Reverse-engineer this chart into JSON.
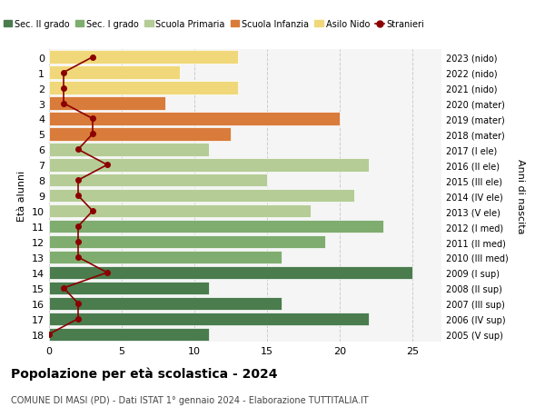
{
  "ages": [
    18,
    17,
    16,
    15,
    14,
    13,
    12,
    11,
    10,
    9,
    8,
    7,
    6,
    5,
    4,
    3,
    2,
    1,
    0
  ],
  "years": [
    "2005 (V sup)",
    "2006 (IV sup)",
    "2007 (III sup)",
    "2008 (II sup)",
    "2009 (I sup)",
    "2010 (III med)",
    "2011 (II med)",
    "2012 (I med)",
    "2013 (V ele)",
    "2014 (IV ele)",
    "2015 (III ele)",
    "2016 (II ele)",
    "2017 (I ele)",
    "2018 (mater)",
    "2019 (mater)",
    "2020 (mater)",
    "2021 (nido)",
    "2022 (nido)",
    "2023 (nido)"
  ],
  "bar_values": [
    11,
    22,
    16,
    11,
    25,
    16,
    19,
    23,
    18,
    21,
    15,
    22,
    11,
    12.5,
    20,
    8,
    13,
    9,
    13
  ],
  "bar_colors": [
    "#4a7c4e",
    "#4a7c4e",
    "#4a7c4e",
    "#4a7c4e",
    "#4a7c4e",
    "#7fad6f",
    "#7fad6f",
    "#7fad6f",
    "#b5cc96",
    "#b5cc96",
    "#b5cc96",
    "#b5cc96",
    "#b5cc96",
    "#d97b3a",
    "#d97b3a",
    "#d97b3a",
    "#f0d87a",
    "#f0d87a",
    "#f0d87a"
  ],
  "stranieri_values": [
    0,
    2,
    2,
    1,
    4,
    2,
    2,
    2,
    3,
    2,
    2,
    4,
    2,
    3,
    3,
    1,
    1,
    1,
    3
  ],
  "stranieri_color": "#8b0000",
  "legend_labels": [
    "Sec. II grado",
    "Sec. I grado",
    "Scuola Primaria",
    "Scuola Infanzia",
    "Asilo Nido",
    "Stranieri"
  ],
  "legend_colors": [
    "#4a7c4e",
    "#7fad6f",
    "#b5cc96",
    "#d97b3a",
    "#f0d87a",
    "#8b0000"
  ],
  "title": "Popolazione per età scolastica - 2024",
  "subtitle": "COMUNE DI MASI (PD) - Dati ISTAT 1° gennaio 2024 - Elaborazione TUTTITALIA.IT",
  "ylabel_left": "Età alunni",
  "ylabel_right": "Anni di nascita",
  "xlim": [
    0,
    27
  ],
  "xticks": [
    0,
    5,
    10,
    15,
    20,
    25
  ],
  "background_color": "#ffffff",
  "plot_bg_color": "#f5f5f5",
  "grid_color": "#cccccc"
}
